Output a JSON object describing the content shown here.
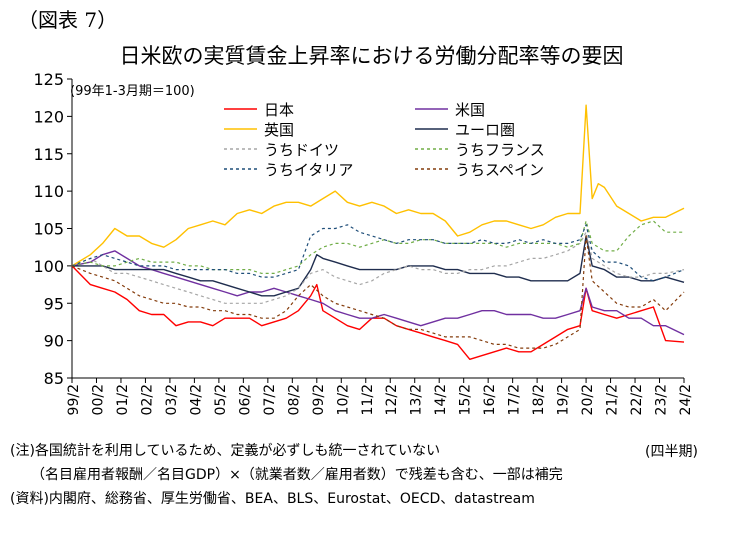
{
  "figure_label": "（図表 7）",
  "unit_label": "(四半期)",
  "notes": [
    "(注)各国統計を利用しているため、定義が必ずしも統一されていない",
    "　　（名目雇用者報酬／名目GDP）×（就業者数／雇用者数）で残差も含む、一部は補完",
    "(資料)内閣府、総務省、厚生労働省、BEA、BLS、Eurostat、OECD、datastream"
  ],
  "chart_data": {
    "type": "line",
    "title": "日米欧の実質賃金上昇率における労働分配率等の要因",
    "subtitle": "(99年1-3月期＝100)",
    "ylim": [
      85,
      125
    ],
    "yticks": [
      85,
      90,
      95,
      100,
      105,
      110,
      115,
      120,
      125
    ],
    "x_range": [
      1999.25,
      2024.25
    ],
    "x_tick_labels": [
      "99/2",
      "00/2",
      "01/2",
      "02/2",
      "03/2",
      "04/2",
      "05/2",
      "06/2",
      "07/2",
      "08/2",
      "09/2",
      "10/2",
      "11/2",
      "12/2",
      "13/2",
      "14/2",
      "15/2",
      "16/2",
      "17/2",
      "18/2",
      "19/2",
      "20/2",
      "21/2",
      "22/2",
      "23/2",
      "24/2"
    ],
    "grid": false,
    "legend_position": "top-center",
    "series": [
      {
        "name": "日本",
        "color": "#ff0000",
        "dash": "solid",
        "x": [
          1999.25,
          2000.0,
          2000.5,
          2001.0,
          2001.5,
          2002.0,
          2002.5,
          2003.0,
          2003.5,
          2004.0,
          2004.5,
          2005.0,
          2005.5,
          2006.0,
          2006.5,
          2007.0,
          2007.5,
          2008.0,
          2008.5,
          2009.0,
          2009.25,
          2009.5,
          2010.0,
          2010.5,
          2011.0,
          2011.5,
          2012.0,
          2012.5,
          2013.0,
          2013.5,
          2014.0,
          2014.5,
          2015.0,
          2015.5,
          2016.0,
          2016.5,
          2017.0,
          2017.5,
          2018.0,
          2018.5,
          2019.0,
          2019.5,
          2020.0,
          2020.25,
          2020.5,
          2021.0,
          2021.5,
          2022.0,
          2022.5,
          2023.0,
          2023.5,
          2024.25
        ],
        "y": [
          100,
          97.5,
          97,
          96.5,
          95.5,
          94,
          93.5,
          93.5,
          92,
          92.5,
          92.5,
          92,
          93,
          93,
          93,
          92,
          92.5,
          93,
          94,
          96,
          97.5,
          94,
          93,
          92,
          91.5,
          93,
          93,
          92,
          91.5,
          91,
          90.5,
          90,
          89.5,
          87.5,
          88,
          88.5,
          89,
          88.5,
          88.5,
          89.5,
          90.5,
          91.5,
          92,
          97,
          94,
          93.5,
          93,
          93.5,
          94,
          94.5,
          90,
          89.8
        ]
      },
      {
        "name": "米国",
        "color": "#7030a0",
        "dash": "solid",
        "x": [
          1999.25,
          2000.0,
          2000.5,
          2001.0,
          2001.5,
          2002.0,
          2002.5,
          2003.0,
          2003.5,
          2004.0,
          2004.5,
          2005.0,
          2005.5,
          2006.0,
          2006.5,
          2007.0,
          2007.5,
          2008.0,
          2008.5,
          2009.0,
          2009.5,
          2010.0,
          2010.5,
          2011.0,
          2011.5,
          2012.0,
          2012.5,
          2013.0,
          2013.5,
          2014.0,
          2014.5,
          2015.0,
          2015.5,
          2016.0,
          2016.5,
          2017.0,
          2017.5,
          2018.0,
          2018.5,
          2019.0,
          2019.5,
          2020.0,
          2020.25,
          2020.5,
          2021.0,
          2021.5,
          2022.0,
          2022.5,
          2023.0,
          2023.5,
          2024.25
        ],
        "y": [
          100,
          100.5,
          101.5,
          102,
          101,
          100,
          99.5,
          99,
          98.5,
          98,
          97.5,
          97,
          96.5,
          96,
          96.5,
          96.5,
          97,
          96.5,
          96,
          95.5,
          95,
          94,
          93.5,
          93,
          93,
          93.5,
          93,
          92.5,
          92,
          92.5,
          93,
          93,
          93.5,
          94,
          94,
          93.5,
          93.5,
          93.5,
          93,
          93,
          93.5,
          94,
          97,
          94.5,
          94,
          94,
          93,
          93,
          92,
          92,
          90.8
        ]
      },
      {
        "name": "英国",
        "color": "#ffc000",
        "dash": "solid",
        "x": [
          1999.25,
          2000.0,
          2000.5,
          2001.0,
          2001.5,
          2002.0,
          2002.5,
          2003.0,
          2003.5,
          2004.0,
          2004.5,
          2005.0,
          2005.5,
          2006.0,
          2006.5,
          2007.0,
          2007.5,
          2008.0,
          2008.5,
          2009.0,
          2009.5,
          2010.0,
          2010.5,
          2011.0,
          2011.5,
          2012.0,
          2012.5,
          2013.0,
          2013.5,
          2014.0,
          2014.5,
          2015.0,
          2015.5,
          2016.0,
          2016.5,
          2017.0,
          2017.5,
          2018.0,
          2018.5,
          2019.0,
          2019.5,
          2020.0,
          2020.25,
          2020.5,
          2020.75,
          2021.0,
          2021.5,
          2022.0,
          2022.5,
          2023.0,
          2023.5,
          2024.25
        ],
        "y": [
          100,
          101.5,
          103,
          105,
          104,
          104,
          103,
          102.5,
          103.5,
          105,
          105.5,
          106,
          105.5,
          107,
          107.5,
          107,
          108,
          108.5,
          108.5,
          108,
          109,
          110,
          108.5,
          108,
          108.5,
          108,
          107,
          107.5,
          107,
          107,
          106,
          104,
          104.5,
          105.5,
          106,
          106,
          105.5,
          105,
          105.5,
          106.5,
          107,
          107,
          121.5,
          109,
          111,
          110.5,
          108,
          107,
          106,
          106.5,
          106.5,
          107.7
        ]
      },
      {
        "name": "ユーロ圏",
        "color": "#1f2d4e",
        "dash": "solid",
        "x": [
          1999.25,
          2000.0,
          2000.5,
          2001.0,
          2001.5,
          2002.0,
          2002.5,
          2003.0,
          2003.5,
          2004.0,
          2004.5,
          2005.0,
          2005.5,
          2006.0,
          2006.5,
          2007.0,
          2007.5,
          2008.0,
          2008.5,
          2009.0,
          2009.25,
          2009.5,
          2010.0,
          2010.5,
          2011.0,
          2011.5,
          2012.0,
          2012.5,
          2013.0,
          2013.5,
          2014.0,
          2014.5,
          2015.0,
          2015.5,
          2016.0,
          2016.5,
          2017.0,
          2017.5,
          2018.0,
          2018.5,
          2019.0,
          2019.5,
          2020.0,
          2020.25,
          2020.5,
          2021.0,
          2021.5,
          2022.0,
          2022.5,
          2023.0,
          2023.5,
          2024.25
        ],
        "y": [
          100,
          100,
          100,
          99.5,
          99.5,
          99.5,
          99.5,
          99.5,
          99,
          98.5,
          98,
          98,
          97.5,
          97,
          96.5,
          96,
          96,
          96.5,
          97,
          99.5,
          101.5,
          101,
          100.5,
          100,
          99.5,
          99.5,
          99.5,
          99.5,
          100,
          100,
          100,
          99.5,
          99.5,
          99,
          99,
          99,
          98.5,
          98.5,
          98,
          98,
          98,
          98,
          99,
          104,
          100,
          99.5,
          98.5,
          98.5,
          98,
          98,
          98.5,
          97.8
        ]
      },
      {
        "name": "うちドイツ",
        "color": "#a6a6a6",
        "dash": "3,3",
        "x": [
          1999.25,
          2000.0,
          2000.5,
          2001.0,
          2001.5,
          2002.0,
          2002.5,
          2003.0,
          2003.5,
          2004.0,
          2004.5,
          2005.0,
          2005.5,
          2006.0,
          2006.5,
          2007.0,
          2007.5,
          2008.0,
          2008.5,
          2009.0,
          2009.5,
          2010.0,
          2010.5,
          2011.0,
          2011.5,
          2012.0,
          2012.5,
          2013.0,
          2013.5,
          2014.0,
          2014.5,
          2015.0,
          2015.5,
          2016.0,
          2016.5,
          2017.0,
          2017.5,
          2018.0,
          2018.5,
          2019.0,
          2019.5,
          2020.0,
          2020.25,
          2020.5,
          2021.0,
          2021.5,
          2022.0,
          2022.5,
          2023.0,
          2023.5,
          2024.25
        ],
        "y": [
          100,
          101,
          100,
          99,
          99,
          98.5,
          98,
          97.5,
          97,
          96.5,
          96,
          95.5,
          95,
          95,
          95,
          95,
          95.5,
          96,
          97,
          99,
          99.5,
          98.5,
          98,
          97.5,
          98,
          99,
          99.5,
          100,
          99.5,
          99.5,
          99,
          99,
          99.5,
          99.5,
          100,
          100,
          100.5,
          101,
          101,
          101.5,
          102,
          103,
          104.5,
          101,
          100,
          99,
          98.5,
          98.5,
          99,
          99,
          99.5
        ]
      },
      {
        "name": "うちフランス",
        "color": "#70ad47",
        "dash": "3,3",
        "x": [
          1999.25,
          2000.0,
          2000.5,
          2001.0,
          2001.5,
          2002.0,
          2002.5,
          2003.0,
          2003.5,
          2004.0,
          2004.5,
          2005.0,
          2005.5,
          2006.0,
          2006.5,
          2007.0,
          2007.5,
          2008.0,
          2008.5,
          2009.0,
          2009.5,
          2010.0,
          2010.5,
          2011.0,
          2011.5,
          2012.0,
          2012.5,
          2013.0,
          2013.5,
          2014.0,
          2014.5,
          2015.0,
          2015.5,
          2016.0,
          2016.5,
          2017.0,
          2017.5,
          2018.0,
          2018.5,
          2019.0,
          2019.5,
          2020.0,
          2020.25,
          2020.5,
          2021.0,
          2021.5,
          2022.0,
          2022.5,
          2023.0,
          2023.5,
          2024.25
        ],
        "y": [
          100,
          100.5,
          100,
          100,
          100.5,
          101,
          100.5,
          100.5,
          100.5,
          100,
          100,
          99.5,
          99.5,
          99.5,
          99.5,
          99,
          99,
          99.5,
          100,
          101.5,
          102.5,
          103,
          103,
          102.5,
          103,
          103.5,
          103,
          103,
          103.5,
          103.5,
          103,
          103,
          103,
          103,
          103,
          102.5,
          103,
          103,
          103,
          103,
          102.5,
          103,
          106,
          103,
          102,
          102,
          104,
          105.5,
          106,
          104.5,
          104.5
        ]
      },
      {
        "name": "うちイタリア",
        "color": "#1f4e79",
        "dash": "3,3",
        "x": [
          1999.25,
          2000.0,
          2000.5,
          2001.0,
          2001.5,
          2002.0,
          2002.5,
          2003.0,
          2003.5,
          2004.0,
          2004.5,
          2005.0,
          2005.5,
          2006.0,
          2006.5,
          2007.0,
          2007.5,
          2008.0,
          2008.5,
          2009.0,
          2009.5,
          2010.0,
          2010.5,
          2011.0,
          2011.5,
          2012.0,
          2012.5,
          2013.0,
          2013.5,
          2014.0,
          2014.5,
          2015.0,
          2015.5,
          2016.0,
          2016.5,
          2017.0,
          2017.5,
          2018.0,
          2018.5,
          2019.0,
          2019.5,
          2020.0,
          2020.25,
          2020.5,
          2021.0,
          2021.5,
          2022.0,
          2022.5,
          2023.0,
          2023.5,
          2024.25
        ],
        "y": [
          100,
          101,
          101.5,
          101,
          100.5,
          100,
          100,
          100,
          99.5,
          99.5,
          99.5,
          99.5,
          99.5,
          99,
          99,
          98.5,
          98.5,
          99,
          99.5,
          104,
          105,
          105,
          105.5,
          104.5,
          104,
          103.5,
          103,
          103.5,
          103.5,
          103.5,
          103,
          103,
          103,
          103.5,
          103,
          103,
          103.5,
          103,
          103.5,
          103,
          103,
          103.5,
          105.5,
          102,
          100.5,
          100.5,
          100,
          98.5,
          98,
          98.5,
          99.5
        ]
      },
      {
        "name": "うちスペイン",
        "color": "#843c0c",
        "dash": "3,3",
        "x": [
          1999.25,
          2000.0,
          2000.5,
          2001.0,
          2001.5,
          2002.0,
          2002.5,
          2003.0,
          2003.5,
          2004.0,
          2004.5,
          2005.0,
          2005.5,
          2006.0,
          2006.5,
          2007.0,
          2007.5,
          2008.0,
          2008.5,
          2009.0,
          2009.5,
          2010.0,
          2010.5,
          2011.0,
          2011.5,
          2012.0,
          2012.5,
          2013.0,
          2013.5,
          2014.0,
          2014.5,
          2015.0,
          2015.5,
          2016.0,
          2016.5,
          2017.0,
          2017.5,
          2018.0,
          2018.5,
          2019.0,
          2019.5,
          2020.0,
          2020.25,
          2020.5,
          2021.0,
          2021.5,
          2022.0,
          2022.5,
          2023.0,
          2023.5,
          2024.25
        ],
        "y": [
          100,
          99,
          98.5,
          98,
          97,
          96,
          95.5,
          95,
          95,
          94.5,
          94.5,
          94,
          94,
          93.5,
          93.5,
          93,
          93,
          94,
          96,
          97.5,
          96,
          95,
          94.5,
          94,
          93.5,
          93,
          92,
          91.5,
          91.5,
          91,
          90.5,
          90.5,
          90.5,
          90,
          89.5,
          89.5,
          89,
          89,
          89,
          89.5,
          90.5,
          91.5,
          104,
          98,
          96.5,
          95,
          94.5,
          94.5,
          95.5,
          94,
          96.5
        ]
      }
    ]
  }
}
